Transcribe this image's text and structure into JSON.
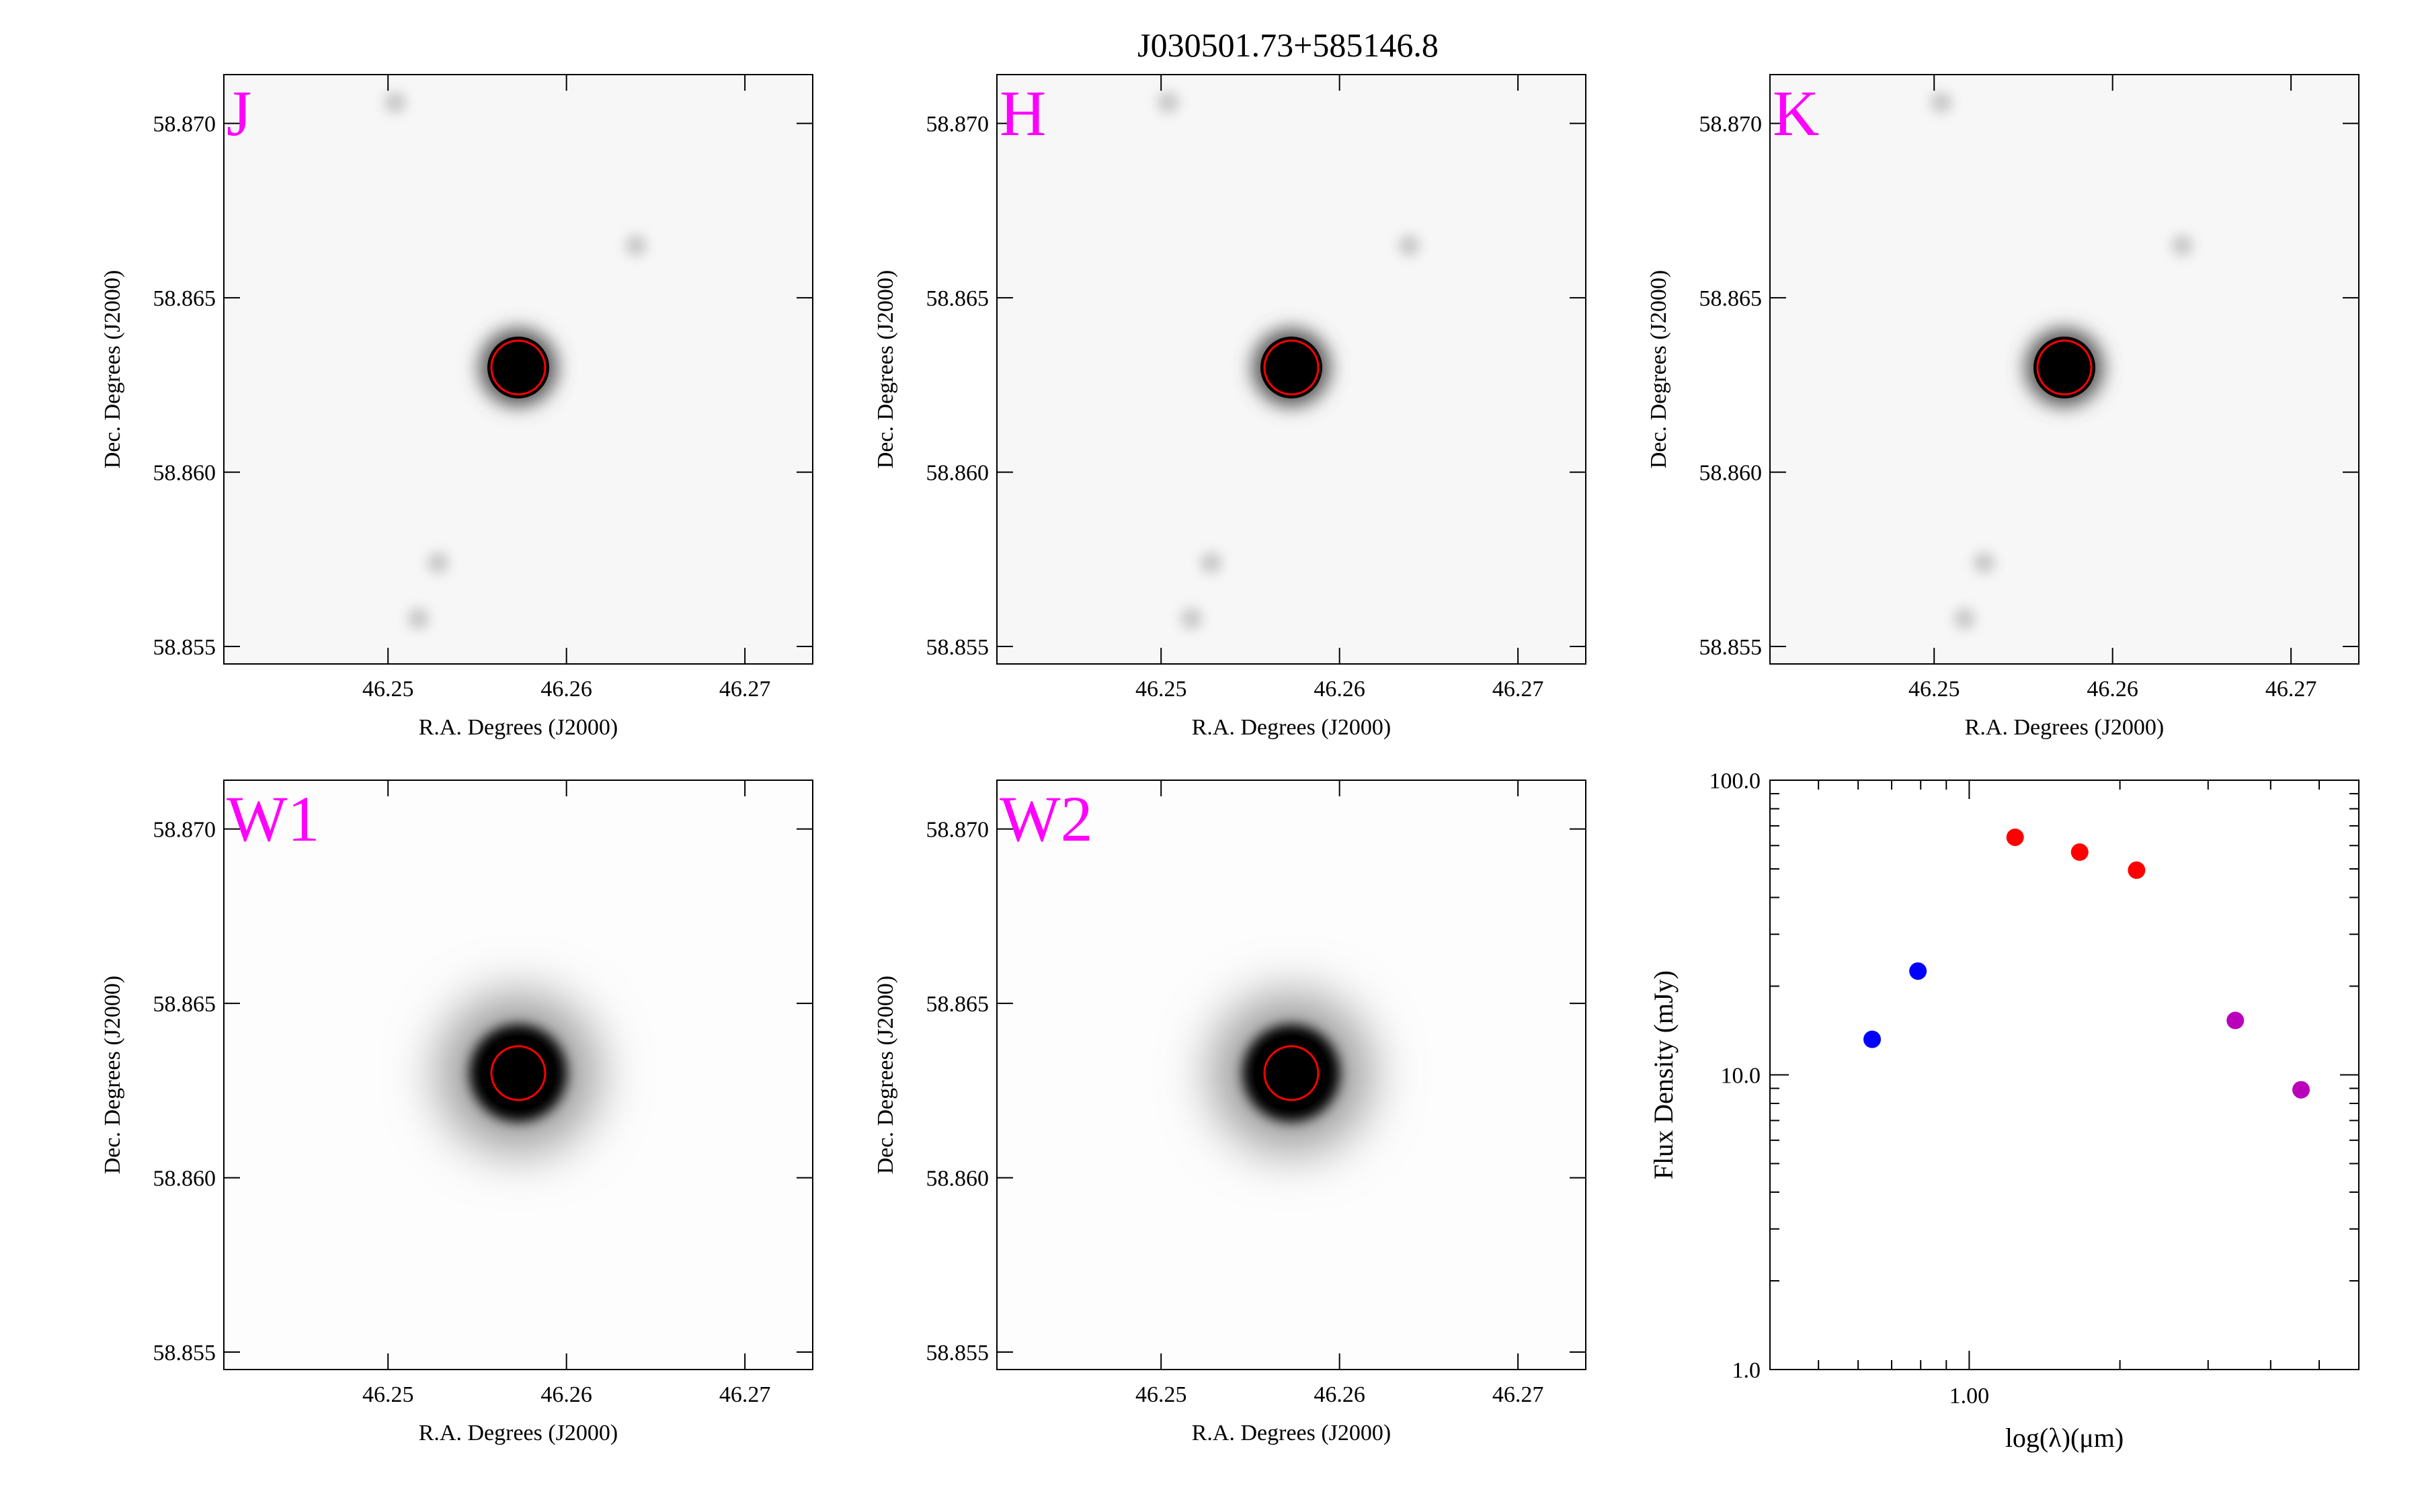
{
  "title": "J030501.73+585146.8",
  "colors": {
    "band_label": "#ff00ff",
    "aperture": "#ff0000",
    "sed_blue": "#0000ff",
    "sed_red": "#ff0000",
    "sed_purple": "#bb00bb"
  },
  "image_axes": {
    "xlabel": "R.A. Degrees (J2000)",
    "ylabel": "Dec. Degrees (J2000)",
    "xticks": [
      "46.25",
      "46.26",
      "46.27"
    ],
    "xtick_values": [
      46.25,
      46.26,
      46.27
    ],
    "xlim": [
      46.2408,
      46.2738
    ],
    "yticks": [
      "58.855",
      "58.860",
      "58.865",
      "58.870"
    ],
    "ytick_values": [
      58.855,
      58.86,
      58.865,
      58.87
    ],
    "ylim": [
      58.8545,
      58.8714
    ]
  },
  "cutouts": [
    {
      "band": "J",
      "kind": "2mass",
      "source": [
        46.2573,
        58.863
      ],
      "faint_sources": [
        [
          46.2504,
          58.8706
        ],
        [
          46.2639,
          58.8665
        ],
        [
          46.2517,
          58.8558
        ],
        [
          46.2528,
          58.8574
        ]
      ]
    },
    {
      "band": "H",
      "kind": "2mass",
      "source": [
        46.2573,
        58.863
      ],
      "faint_sources": [
        [
          46.2504,
          58.8706
        ],
        [
          46.2639,
          58.8665
        ],
        [
          46.2517,
          58.8558
        ],
        [
          46.2528,
          58.8574
        ]
      ]
    },
    {
      "band": "K",
      "kind": "2mass",
      "source": [
        46.2573,
        58.863
      ],
      "faint_sources": [
        [
          46.2504,
          58.8706
        ],
        [
          46.2639,
          58.8665
        ],
        [
          46.2517,
          58.8558
        ],
        [
          46.2528,
          58.8574
        ]
      ]
    },
    {
      "band": "W1",
      "kind": "wise",
      "source": [
        46.2573,
        58.863
      ],
      "faint_sources": []
    },
    {
      "band": "W2",
      "kind": "wise",
      "source": [
        46.2573,
        58.863
      ],
      "faint_sources": []
    }
  ],
  "chart_data": {
    "type": "scatter",
    "title": "",
    "xlabel": "log(λ)(μm)",
    "ylabel": "Flux Density (mJy)",
    "xscale": "log",
    "yscale": "log",
    "xlim": [
      0.4,
      6.0
    ],
    "ylim": [
      1.0,
      100.0
    ],
    "xticks": [
      "1.00"
    ],
    "xtick_values": [
      1.0
    ],
    "yticks": [
      "1.0",
      "10.0",
      "100.0"
    ],
    "ytick_values": [
      1.0,
      10.0,
      100.0
    ],
    "series": [
      {
        "color": "#0000ff",
        "points": [
          [
            0.64,
            13.2
          ],
          [
            0.79,
            22.5
          ]
        ]
      },
      {
        "color": "#ff0000",
        "points": [
          [
            1.235,
            64.0
          ],
          [
            1.662,
            57.0
          ],
          [
            2.159,
            49.5
          ]
        ]
      },
      {
        "color": "#bb00bb",
        "points": [
          [
            3.4,
            15.3
          ],
          [
            4.6,
            8.9
          ]
        ]
      }
    ]
  }
}
